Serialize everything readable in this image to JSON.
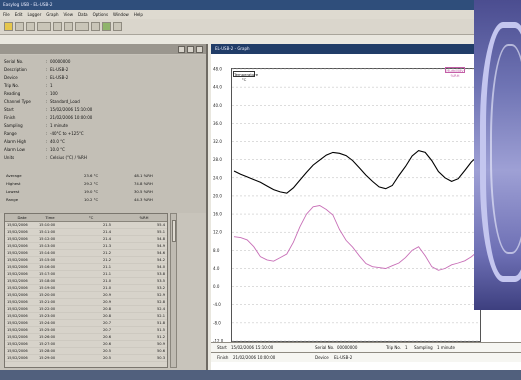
{
  "app": {
    "title": "Easylog USB - EL-USB-2",
    "menus": [
      "File",
      "Edit",
      "Logger",
      "Graph",
      "View",
      "Data",
      "Options",
      "Window",
      "Help"
    ]
  },
  "info_rows": [
    {
      "label": "Serial No.",
      "value": "00000000"
    },
    {
      "label": "Description",
      "value": "EL-USB-2"
    },
    {
      "label": "Device",
      "value": "EL-USB-2"
    },
    {
      "label": "Trip No.",
      "value": "1"
    },
    {
      "label": "Reading",
      "value": "100"
    },
    {
      "label": "Channel Type",
      "value": "Standard_Load"
    },
    {
      "label": "Start",
      "value": "15/02/2006 15:10:00"
    },
    {
      "label": "Finish",
      "value": "21/02/2006 10:00:00"
    },
    {
      "label": "Sampling",
      "value": "1 minute"
    },
    {
      "label": "Range",
      "value": "-40°C to +125°C"
    },
    {
      "label": "Alarm High",
      "value": "40.0 °C"
    },
    {
      "label": "Alarm Low",
      "value": "10.0 °C"
    },
    {
      "label": "Units",
      "value": "Celsius (°C) / %RH"
    }
  ],
  "stats": [
    {
      "label": "Average",
      "mid": "23.6 °C",
      "right": "48.1 %RH"
    },
    {
      "label": "Highest",
      "mid": "29.2 °C",
      "right": "74.8 %RH"
    },
    {
      "label": "Lowest",
      "mid": "19.0 °C",
      "right": "30.5 %RH"
    },
    {
      "label": "Range",
      "mid": "10.2 °C",
      "right": "44.3 %RH"
    }
  ],
  "grid": {
    "headers": [
      "Date",
      "Time",
      "°C",
      "%RH"
    ],
    "rows": [
      [
        "15/02/2006",
        "15:10:00",
        "21.5",
        "55.4"
      ],
      [
        "15/02/2006",
        "15:11:00",
        "21.4",
        "55.1"
      ],
      [
        "15/02/2006",
        "15:12:00",
        "21.4",
        "54.8"
      ],
      [
        "15/02/2006",
        "15:13:00",
        "21.3",
        "54.9"
      ],
      [
        "15/02/2006",
        "15:14:00",
        "21.2",
        "54.6"
      ],
      [
        "15/02/2006",
        "15:15:00",
        "21.2",
        "54.2"
      ],
      [
        "15/02/2006",
        "15:16:00",
        "21.1",
        "54.0"
      ],
      [
        "15/02/2006",
        "15:17:00",
        "21.1",
        "53.8"
      ],
      [
        "15/02/2006",
        "15:18:00",
        "21.0",
        "53.5"
      ],
      [
        "15/02/2006",
        "15:19:00",
        "21.0",
        "53.2"
      ],
      [
        "15/02/2006",
        "15:20:00",
        "20.9",
        "52.9"
      ],
      [
        "15/02/2006",
        "15:21:00",
        "20.9",
        "52.8"
      ],
      [
        "15/02/2006",
        "15:22:00",
        "20.8",
        "52.4"
      ],
      [
        "15/02/2006",
        "15:23:00",
        "20.8",
        "52.1"
      ],
      [
        "15/02/2006",
        "15:24:00",
        "20.7",
        "51.8"
      ],
      [
        "15/02/2006",
        "15:25:00",
        "20.7",
        "51.5"
      ],
      [
        "15/02/2006",
        "15:26:00",
        "20.6",
        "51.2"
      ],
      [
        "15/02/2006",
        "15:27:00",
        "20.6",
        "50.9"
      ],
      [
        "15/02/2006",
        "15:28:00",
        "20.5",
        "50.6"
      ],
      [
        "15/02/2006",
        "15:29:00",
        "20.5",
        "50.3"
      ]
    ]
  },
  "graph": {
    "title": "EL-USB-2 - Graph",
    "legend_left": "Temperature °C",
    "legend_right": "Humidity %RH",
    "axis_labels": [
      "48.0",
      "44.0",
      "40.0",
      "36.0",
      "32.0",
      "28.0",
      "24.0",
      "20.0",
      "16.0",
      "12.0",
      "8.0",
      "4.0",
      "0.0",
      "-4.0",
      "-8.0",
      "-12.0"
    ],
    "x_labels": [
      "16/02/2006",
      "17/02/2006",
      "18/02/2006",
      "19/02/2006",
      "20/02/2006",
      "21/02/2006"
    ],
    "start": "15/02/2006 15:10:00",
    "finish": "21/02/2006 10:00:00",
    "serial": "00000000",
    "trip": "1",
    "sampling": "1 minute",
    "device": "EL-USB-2"
  },
  "chart_data": {
    "type": "line",
    "ylim": [
      -12,
      48
    ],
    "series": [
      {
        "color": "#000000",
        "values": [
          25.5,
          24.8,
          24.2,
          23.6,
          23.0,
          22.2,
          21.4,
          20.9,
          20.6,
          21.8,
          23.5,
          25.2,
          26.8,
          27.9,
          29.0,
          29.6,
          29.4,
          28.9,
          27.8,
          26.2,
          24.6,
          23.2,
          22.0,
          21.6,
          22.3,
          24.5,
          26.5,
          28.8,
          30.0,
          29.6,
          27.8,
          25.4,
          24.0,
          23.2,
          23.8,
          25.6,
          27.5,
          28.8
        ]
      },
      {
        "color": "#c86fb7",
        "values": [
          11.0,
          10.8,
          10.3,
          8.8,
          6.6,
          5.9,
          5.6,
          6.4,
          7.2,
          9.8,
          13.2,
          16.0,
          17.6,
          17.9,
          17.0,
          15.8,
          12.6,
          10.2,
          8.7,
          6.8,
          5.1,
          4.4,
          4.2,
          4.0,
          4.6,
          5.2,
          6.4,
          8.0,
          8.8,
          6.8,
          4.4,
          3.6,
          4.0,
          4.8,
          5.2,
          5.7,
          6.6,
          7.8
        ]
      }
    ]
  },
  "colors": {
    "title": "#2f4e7b",
    "graph_title": "#213d68",
    "temp_line": "#000000",
    "humidity_line": "#c86fb7"
  }
}
